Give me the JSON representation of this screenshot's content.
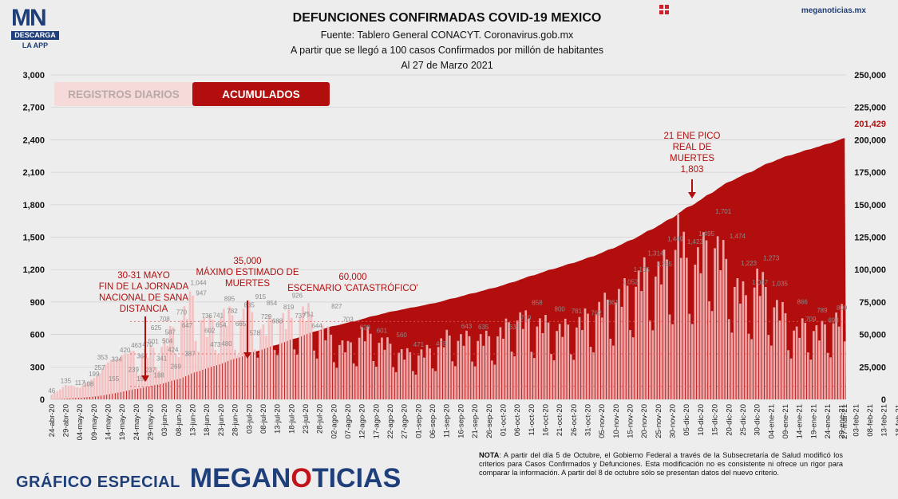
{
  "header": {
    "title": "DEFUNCIONES CONFIRMADAS COVID-19 MEXICO",
    "source": "Fuente: Tablero General CONACYT. Coronavirus.gob.mx",
    "criterion": "A partir que se llegó a 100 casos Confirmados por millón de habitantes",
    "date": "Al 27 de Marzo 2021",
    "site": "meganoticias.mx"
  },
  "logo": {
    "top": "MN",
    "descarga": "DESCARGA",
    "app": "LA APP"
  },
  "tabs": [
    {
      "label": "REGISTROS DIARIOS",
      "active": false
    },
    {
      "label": "ACUMULADOS",
      "active": true
    }
  ],
  "footer": {
    "special": "GRÁFICO ESPECIAL",
    "brand_a": "MEGAN",
    "brand_b": "O",
    "brand_c": "TICIAS",
    "note_label": "NOTA",
    "note_text": ": A partir del día 5 de Octubre, el Gobierno Federal a través de la Subsecretaría de Salud modificó los criterios para Casos Confirmados y Defunciones. Esta modificación no es consistente ni ofrece un rigor para comparar la información. A partir del 8 de octubre sólo se presentan datos del nuevo criterio."
  },
  "colors": {
    "accent": "#b30e0e",
    "daily": "#f4c2c2",
    "navy": "#1f3f7a"
  },
  "chart_data": {
    "type": "bar",
    "left_axis": {
      "ticks": [
        0,
        300,
        600,
        900,
        1200,
        1500,
        1800,
        2100,
        2400,
        2700,
        3000
      ],
      "labels": [
        "0",
        "300",
        "600",
        "900",
        "1,200",
        "1,500",
        "1,800",
        "2,100",
        "2,400",
        "2,700",
        "3,000"
      ],
      "ylim": [
        0,
        3000
      ]
    },
    "right_axis": {
      "ticks": [
        0,
        25000,
        50000,
        75000,
        100000,
        125000,
        150000,
        175000,
        200000,
        225000,
        250000
      ],
      "labels": [
        "0",
        "25,000",
        "50,000",
        "75,000",
        "100,000",
        "125,000",
        "150,000",
        "175,000",
        "200,000",
        "225,000",
        "250,000"
      ],
      "ylim": [
        0,
        250000
      ]
    },
    "x_ticks": [
      "24-abr-20",
      "29-abr-20",
      "04-may-20",
      "09-may-20",
      "14-may-20",
      "19-may-20",
      "24-may-20",
      "29-may-20",
      "03-jun-20",
      "08-jun-20",
      "13-jun-20",
      "18-jun-20",
      "23-jun-20",
      "28-jun-20",
      "03-jul-20",
      "08-jul-20",
      "13-jul-20",
      "18-jul-20",
      "23-jul-20",
      "28-jul-20",
      "02-ago-20",
      "07-ago-20",
      "12-ago-20",
      "17-ago-20",
      "22-ago-20",
      "27-ago-20",
      "01-sep-20",
      "06-sep-20",
      "11-sep-20",
      "16-sep-20",
      "21-sep-20",
      "26-sep-20",
      "01-oct-20",
      "06-oct-20",
      "11-oct-20",
      "16-oct-20",
      "21-oct-20",
      "26-oct-20",
      "31-oct-20",
      "05-nov-20",
      "10-nov-20",
      "15-nov-20",
      "20-nov-20",
      "25-nov-20",
      "30-nov-20",
      "05-dic-20",
      "10-dic-20",
      "15-dic-20",
      "20-dic-20",
      "25-dic-20",
      "30-dic-20",
      "04-ene-21",
      "09-ene-21",
      "14-ene-21",
      "19-ene-21",
      "24-ene-21",
      "29-ene-21",
      "03-feb-21",
      "08-feb-21",
      "13-feb-21",
      "18-feb-21",
      "23-feb-21",
      "28-feb-22",
      "05-mar-21",
      "10-mar-21",
      "15-mar-21",
      "20-mar-21",
      "25-mar-21",
      "27-mar-21"
    ],
    "daily_keypoints": [
      [
        0,
        46
      ],
      [
        5,
        135
      ],
      [
        10,
        117
      ],
      [
        15,
        199
      ],
      [
        20,
        353
      ],
      [
        25,
        420
      ],
      [
        30,
        463
      ],
      [
        35,
        501
      ],
      [
        40,
        588
      ],
      [
        50,
        1044
      ],
      [
        55,
        741
      ],
      [
        60,
        895
      ],
      [
        65,
        835
      ],
      [
        70,
        915
      ],
      [
        75,
        729
      ],
      [
        80,
        854
      ],
      [
        85,
        819
      ],
      [
        90,
        926
      ],
      [
        95,
        751
      ],
      [
        100,
        625
      ],
      [
        105,
        540
      ],
      [
        110,
        703
      ],
      [
        115,
        629
      ],
      [
        120,
        560
      ],
      [
        125,
        471
      ],
      [
        130,
        478
      ],
      [
        135,
        520
      ],
      [
        140,
        643
      ],
      [
        145,
        635
      ],
      [
        155,
        635
      ],
      [
        160,
        719
      ],
      [
        165,
        858
      ],
      [
        170,
        800
      ],
      [
        175,
        781
      ],
      [
        180,
        735
      ],
      [
        185,
        762
      ],
      [
        190,
        861
      ],
      [
        195,
        970
      ],
      [
        200,
        1052
      ],
      [
        205,
        1165
      ],
      [
        210,
        1314
      ],
      [
        215,
        1341
      ],
      [
        220,
        1449
      ],
      [
        222,
        1803
      ],
      [
        225,
        1423
      ],
      [
        230,
        1495
      ],
      [
        234,
        1701
      ],
      [
        238,
        1474
      ],
      [
        242,
        1223
      ],
      [
        246,
        1047
      ],
      [
        250,
        1273
      ],
      [
        255,
        1035
      ],
      [
        260,
        866
      ],
      [
        264,
        709
      ],
      [
        268,
        789
      ],
      [
        272,
        698
      ],
      [
        276,
        809
      ],
      [
        280,
        881
      ],
      [
        281,
        582
      ]
    ],
    "cumulative_final": 201429,
    "cumulative_final_label": "201,429",
    "annotations": [
      {
        "lines": [
          "30-31 MAYO",
          "FIN DE LA JORNADA",
          "NACIONAL DE SANA",
          "DISTANCIA"
        ]
      },
      {
        "lines": [
          "35,000",
          "MÁXIMO ESTIMADO DE",
          "MUERTES"
        ]
      },
      {
        "lines": [
          "60,000",
          "ESCENARIO 'CATASTRÓFICO'"
        ]
      },
      {
        "lines": [
          "21 ENE PICO",
          "REAL DE",
          "MUERTES",
          "1,803"
        ]
      }
    ],
    "bar_labels": [
      [
        "46",
        0,
        46
      ],
      [
        "135",
        5,
        135
      ],
      [
        "117",
        10,
        117
      ],
      [
        "199",
        15,
        199
      ],
      [
        "108",
        13,
        108
      ],
      [
        "353",
        18,
        353
      ],
      [
        "257",
        17,
        257
      ],
      [
        "155",
        22,
        155
      ],
      [
        "334",
        23,
        334
      ],
      [
        "420",
        26,
        420
      ],
      [
        "463",
        30,
        463
      ],
      [
        "239",
        29,
        239
      ],
      [
        "364",
        32,
        364
      ],
      [
        "470",
        34,
        470
      ],
      [
        "153",
        32,
        153
      ],
      [
        "237",
        35,
        237
      ],
      [
        "501",
        36,
        501
      ],
      [
        "625",
        37,
        625
      ],
      [
        "188",
        38,
        188
      ],
      [
        "341",
        39,
        341
      ],
      [
        "708",
        40,
        708
      ],
      [
        "587",
        42,
        587
      ],
      [
        "504",
        41,
        504
      ],
      [
        "424",
        43,
        424
      ],
      [
        "269",
        44,
        269
      ],
      [
        "770",
        46,
        770
      ],
      [
        "647",
        48,
        647
      ],
      [
        "387",
        49,
        387
      ],
      [
        "1,044",
        52,
        1044
      ],
      [
        "947",
        53,
        947
      ],
      [
        "736",
        55,
        736
      ],
      [
        "602",
        56,
        602
      ],
      [
        "741",
        59,
        741
      ],
      [
        "473",
        58,
        473
      ],
      [
        "654",
        60,
        654
      ],
      [
        "895",
        63,
        895
      ],
      [
        "782",
        64,
        782
      ],
      [
        "480",
        62,
        480
      ],
      [
        "665",
        67,
        665
      ],
      [
        "835",
        70,
        835
      ],
      [
        "578",
        72,
        578
      ],
      [
        "915",
        74,
        915
      ],
      [
        "729",
        76,
        729
      ],
      [
        "854",
        78,
        854
      ],
      [
        "688",
        80,
        688
      ],
      [
        "819",
        84,
        819
      ],
      [
        "926",
        87,
        926
      ],
      [
        "737",
        88,
        737
      ],
      [
        "751",
        91,
        751
      ],
      [
        "644",
        94,
        644
      ],
      [
        "827",
        101,
        827
      ],
      [
        "703",
        105,
        703
      ],
      [
        "629",
        111,
        629
      ],
      [
        "601",
        117,
        601
      ],
      [
        "560",
        124,
        560
      ],
      [
        "471",
        130,
        471
      ],
      [
        "478",
        138,
        478
      ],
      [
        "643",
        147,
        643
      ],
      [
        "635",
        153,
        635
      ],
      [
        "635",
        164,
        635
      ],
      [
        "719",
        168,
        719
      ],
      [
        "858",
        172,
        858
      ],
      [
        "800",
        180,
        800
      ],
      [
        "781",
        186,
        781
      ],
      [
        "762",
        193,
        762
      ],
      [
        "861",
        199,
        861
      ],
      [
        "1,052",
        205,
        1052
      ],
      [
        "1,165",
        209,
        1165
      ],
      [
        "1,314",
        214,
        1314
      ],
      [
        "1,215",
        217,
        1215
      ],
      [
        "1,449",
        221,
        1449
      ],
      [
        "1,423",
        228,
        1423
      ],
      [
        "1,495",
        232,
        1495
      ],
      [
        "1,701",
        238,
        1701
      ],
      [
        "1,474",
        243,
        1474
      ],
      [
        "1,223",
        247,
        1223
      ],
      [
        "1,047",
        251,
        1047
      ],
      [
        "1,273",
        255,
        1273
      ],
      [
        "1,035",
        258,
        1035
      ],
      [
        "866",
        266,
        866
      ],
      [
        "709",
        269,
        709
      ],
      [
        "789",
        273,
        789
      ],
      [
        "698",
        277,
        698
      ],
      [
        "809",
        280,
        809
      ]
    ]
  }
}
